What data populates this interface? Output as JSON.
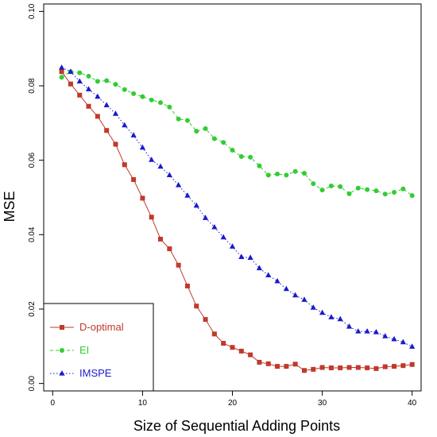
{
  "chart_data": {
    "type": "line",
    "title": "",
    "xlabel": "Size of Sequential Adding Points",
    "ylabel": "MSE",
    "xlim": [
      -1,
      41
    ],
    "ylim": [
      -0.002,
      0.102
    ],
    "x_ticks": [
      0,
      10,
      20,
      30,
      40
    ],
    "y_ticks": [
      0.0,
      0.02,
      0.04,
      0.06,
      0.08,
      0.1
    ],
    "y_tick_labels": [
      "0.00",
      "0.02",
      "0.04",
      "0.06",
      "0.08",
      "0.10"
    ],
    "grid": false,
    "legend_position": "bottom-left",
    "series": [
      {
        "name": "D-optimal",
        "color": "#c0392b",
        "marker": "square",
        "line": "solid",
        "x": [
          1,
          2,
          3,
          4,
          5,
          6,
          7,
          8,
          9,
          10,
          11,
          12,
          13,
          14,
          15,
          16,
          17,
          18,
          19,
          20,
          21,
          22,
          23,
          24,
          25,
          26,
          27,
          28,
          29,
          30,
          31,
          32,
          33,
          34,
          35,
          36,
          37,
          38,
          39,
          40
        ],
        "values": [
          0.0838,
          0.0805,
          0.0775,
          0.0745,
          0.0718,
          0.068,
          0.0643,
          0.0588,
          0.0548,
          0.0498,
          0.0447,
          0.0388,
          0.0362,
          0.0318,
          0.0262,
          0.0208,
          0.0172,
          0.0133,
          0.0108,
          0.0097,
          0.0087,
          0.0077,
          0.0057,
          0.0053,
          0.0046,
          0.0046,
          0.0052,
          0.0035,
          0.0038,
          0.0043,
          0.0042,
          0.0042,
          0.0043,
          0.0043,
          0.0042,
          0.004,
          0.0045,
          0.0046,
          0.0048,
          0.0051
        ]
      },
      {
        "name": "EI",
        "color": "#33cc33",
        "marker": "circle",
        "line": "dashed",
        "x": [
          1,
          2,
          3,
          4,
          5,
          6,
          7,
          8,
          9,
          10,
          11,
          12,
          13,
          14,
          15,
          16,
          17,
          18,
          19,
          20,
          21,
          22,
          23,
          24,
          25,
          26,
          27,
          28,
          29,
          30,
          31,
          32,
          33,
          34,
          35,
          36,
          37,
          38,
          39,
          40
        ],
        "values": [
          0.0823,
          0.0838,
          0.0835,
          0.0826,
          0.0812,
          0.0814,
          0.0804,
          0.079,
          0.0779,
          0.0771,
          0.0762,
          0.0755,
          0.0743,
          0.0711,
          0.0707,
          0.0678,
          0.0685,
          0.0658,
          0.0648,
          0.0627,
          0.061,
          0.0608,
          0.0585,
          0.056,
          0.0563,
          0.056,
          0.057,
          0.0565,
          0.0537,
          0.052,
          0.0531,
          0.0529,
          0.051,
          0.0525,
          0.0521,
          0.0518,
          0.0509,
          0.0514,
          0.0523,
          0.0505
        ]
      },
      {
        "name": "IMSPE",
        "color": "#1a1acc",
        "marker": "triangle",
        "line": "dotted",
        "x": [
          1,
          2,
          3,
          4,
          5,
          6,
          7,
          8,
          9,
          10,
          11,
          12,
          13,
          14,
          15,
          16,
          17,
          18,
          19,
          20,
          21,
          22,
          23,
          24,
          25,
          26,
          27,
          28,
          29,
          30,
          31,
          32,
          33,
          34,
          35,
          36,
          37,
          38,
          39,
          40
        ],
        "values": [
          0.0849,
          0.0838,
          0.0812,
          0.0791,
          0.0771,
          0.0748,
          0.0725,
          0.0694,
          0.0667,
          0.0634,
          0.0601,
          0.0583,
          0.056,
          0.0533,
          0.0505,
          0.0478,
          0.0445,
          0.042,
          0.0393,
          0.0368,
          0.034,
          0.0338,
          0.031,
          0.0291,
          0.0275,
          0.0254,
          0.0237,
          0.0225,
          0.0204,
          0.019,
          0.0178,
          0.0173,
          0.0153,
          0.014,
          0.014,
          0.0138,
          0.0127,
          0.0119,
          0.0111,
          0.0099
        ]
      }
    ]
  }
}
